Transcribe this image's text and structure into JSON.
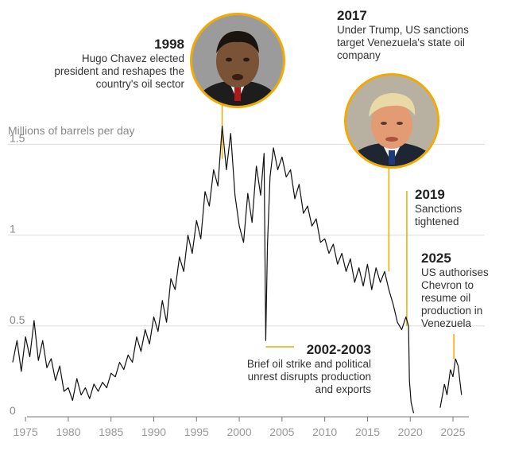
{
  "chart_data": {
    "type": "line",
    "ylabel": "Millions of barrels per day",
    "xlim": [
      1973.5,
      2026.3
    ],
    "ylim": [
      0,
      1.55
    ],
    "xticks": [
      "1975",
      "1980",
      "1985",
      "1990",
      "1995",
      "2000",
      "2005",
      "2010",
      "2015",
      "2020",
      "2025"
    ],
    "xtick_values": [
      1975,
      1980,
      1985,
      1990,
      1995,
      2000,
      2005,
      2010,
      2015,
      2020,
      2025
    ],
    "yticks": [
      "0",
      "0.5",
      "1",
      "1.5"
    ],
    "ytick_values": [
      0,
      0.5,
      1,
      1.5
    ],
    "grid": true,
    "colors": {
      "line": "#111111",
      "accent": "#f2a900",
      "grid": "#dddddd",
      "tick": "#999999"
    },
    "series": [
      {
        "values": [
          [
            1973.5,
            0.3
          ],
          [
            1974.0,
            0.42
          ],
          [
            1974.5,
            0.25
          ],
          [
            1975.0,
            0.44
          ],
          [
            1975.5,
            0.33
          ],
          [
            1976.0,
            0.53
          ],
          [
            1976.5,
            0.31
          ],
          [
            1977.0,
            0.42
          ],
          [
            1977.5,
            0.27
          ],
          [
            1978.0,
            0.32
          ],
          [
            1978.5,
            0.2
          ],
          [
            1979.0,
            0.28
          ],
          [
            1979.5,
            0.14
          ],
          [
            1980.0,
            0.16
          ],
          [
            1980.5,
            0.09
          ],
          [
            1981.0,
            0.21
          ],
          [
            1981.5,
            0.12
          ],
          [
            1982.0,
            0.16
          ],
          [
            1982.5,
            0.1
          ],
          [
            1983.0,
            0.18
          ],
          [
            1983.5,
            0.14
          ],
          [
            1984.0,
            0.19
          ],
          [
            1984.5,
            0.16
          ],
          [
            1985.0,
            0.24
          ],
          [
            1985.5,
            0.22
          ],
          [
            1986.0,
            0.3
          ],
          [
            1986.5,
            0.26
          ],
          [
            1987.0,
            0.34
          ],
          [
            1987.5,
            0.3
          ],
          [
            1988.0,
            0.44
          ],
          [
            1988.5,
            0.36
          ],
          [
            1989.0,
            0.48
          ],
          [
            1989.5,
            0.4
          ],
          [
            1990.0,
            0.55
          ],
          [
            1990.5,
            0.47
          ],
          [
            1991.0,
            0.64
          ],
          [
            1991.5,
            0.52
          ],
          [
            1992.0,
            0.76
          ],
          [
            1992.5,
            0.7
          ],
          [
            1993.0,
            0.88
          ],
          [
            1993.5,
            0.8
          ],
          [
            1994.0,
            1.0
          ],
          [
            1994.5,
            0.9
          ],
          [
            1995.0,
            1.08
          ],
          [
            1995.5,
            0.98
          ],
          [
            1996.0,
            1.24
          ],
          [
            1996.5,
            1.16
          ],
          [
            1997.0,
            1.36
          ],
          [
            1997.5,
            1.27
          ],
          [
            1998.0,
            1.6
          ],
          [
            1998.5,
            1.36
          ],
          [
            1999.0,
            1.56
          ],
          [
            1999.5,
            1.22
          ],
          [
            2000.0,
            1.05
          ],
          [
            2000.5,
            0.96
          ],
          [
            2001.0,
            1.23
          ],
          [
            2001.5,
            1.07
          ],
          [
            2002.0,
            1.38
          ],
          [
            2002.5,
            1.22
          ],
          [
            2002.9,
            1.45
          ],
          [
            2003.1,
            0.42
          ],
          [
            2003.3,
            0.95
          ],
          [
            2003.6,
            1.32
          ],
          [
            2004.0,
            1.48
          ],
          [
            2004.5,
            1.36
          ],
          [
            2005.0,
            1.43
          ],
          [
            2005.5,
            1.32
          ],
          [
            2006.0,
            1.36
          ],
          [
            2006.5,
            1.2
          ],
          [
            2007.0,
            1.28
          ],
          [
            2007.5,
            1.12
          ],
          [
            2008.0,
            1.16
          ],
          [
            2008.5,
            1.05
          ],
          [
            2009.0,
            1.09
          ],
          [
            2009.5,
            0.96
          ],
          [
            2010.0,
            0.98
          ],
          [
            2010.5,
            0.9
          ],
          [
            2011.0,
            0.95
          ],
          [
            2011.5,
            0.84
          ],
          [
            2012.0,
            0.9
          ],
          [
            2012.5,
            0.8
          ],
          [
            2013.0,
            0.87
          ],
          [
            2013.5,
            0.74
          ],
          [
            2014.0,
            0.82
          ],
          [
            2014.5,
            0.72
          ],
          [
            2015.0,
            0.84
          ],
          [
            2015.5,
            0.7
          ],
          [
            2016.0,
            0.82
          ],
          [
            2016.5,
            0.74
          ],
          [
            2017.0,
            0.8
          ],
          [
            2017.5,
            0.7
          ],
          [
            2018.0,
            0.62
          ],
          [
            2018.5,
            0.52
          ],
          [
            2019.0,
            0.48
          ],
          [
            2019.5,
            0.55
          ],
          [
            2019.8,
            0.5
          ],
          [
            2019.9,
            0.2
          ],
          [
            2020.1,
            0.08
          ],
          [
            2020.4,
            0.02
          ],
          [
            2023.5,
            0.05
          ],
          [
            2024.0,
            0.18
          ],
          [
            2024.3,
            0.12
          ],
          [
            2024.7,
            0.26
          ],
          [
            2025.0,
            0.22
          ],
          [
            2025.3,
            0.32
          ],
          [
            2025.6,
            0.28
          ],
          [
            2026.0,
            0.12
          ]
        ]
      }
    ],
    "annotations": [
      {
        "year": "1998",
        "text": "Hugo Chavez elected president and reshapes the country's oil sector",
        "x": 1998,
        "y": 1.6
      },
      {
        "year": "2017",
        "text": "Under Trump, US sanctions target Venezuela's state oil company",
        "x": 2017.5,
        "y": 0.8
      },
      {
        "year": "2019",
        "text": "Sanctions tightened",
        "x": 2019.6,
        "y": 1.28
      },
      {
        "year": "2025",
        "text": "US authorises Chevron to resume oil production in Venezuela",
        "x": 2025.1,
        "y": 0.32
      },
      {
        "year": "2002-2003",
        "text": "Brief oil strike and political unrest disrupts production and exports",
        "x": 2003.1,
        "y": 0.42
      }
    ],
    "portraits": [
      "hugo-chavez-portrait",
      "donald-trump-portrait"
    ]
  }
}
